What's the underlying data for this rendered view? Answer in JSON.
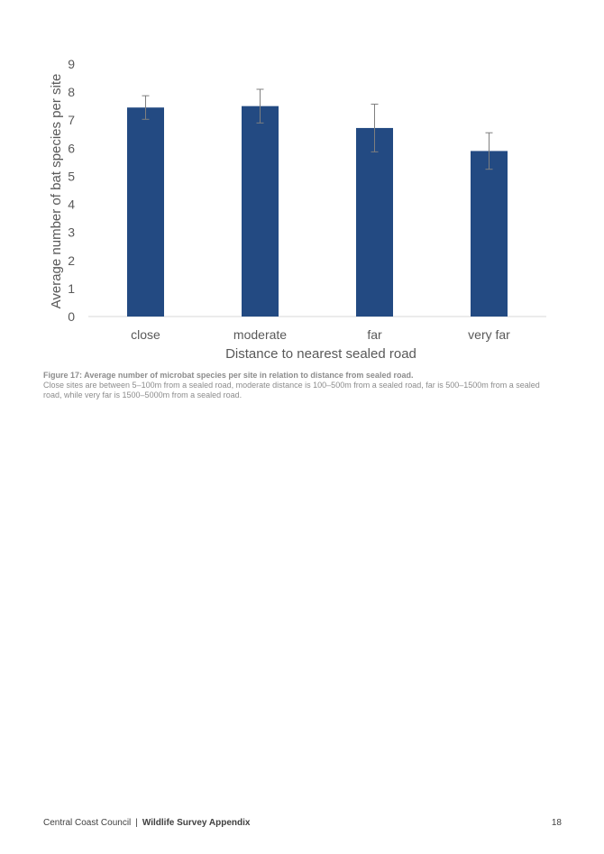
{
  "chart_data": {
    "type": "bar",
    "categories": [
      "close",
      "moderate",
      "far",
      "very far"
    ],
    "values": [
      7.45,
      7.5,
      6.72,
      5.9
    ],
    "errors": [
      0.42,
      0.6,
      0.85,
      0.65
    ],
    "title": "",
    "xlabel": "Distance to nearest sealed road",
    "ylabel": "Average number of bat species per site",
    "ylim": [
      0,
      9
    ],
    "yticks": [
      "0",
      "1",
      "2",
      "3",
      "4",
      "5",
      "6",
      "7",
      "8",
      "9"
    ],
    "grid": false,
    "bar_color": "#234a82",
    "error_color": "#7f7f7f"
  },
  "caption": {
    "title": "Figure 17: Average number of microbat species per site in relation to distance from sealed road.",
    "text": "Close sites are between 5–100m from a sealed road, moderate distance is 100–500m from a sealed road, far is 500–1500m from a sealed road, while very far is 1500–5000m from a sealed road."
  },
  "footer": {
    "organization": "Central Coast Council",
    "separator": "|",
    "document": "Wildlife Survey Appendix",
    "page_number": "18"
  }
}
